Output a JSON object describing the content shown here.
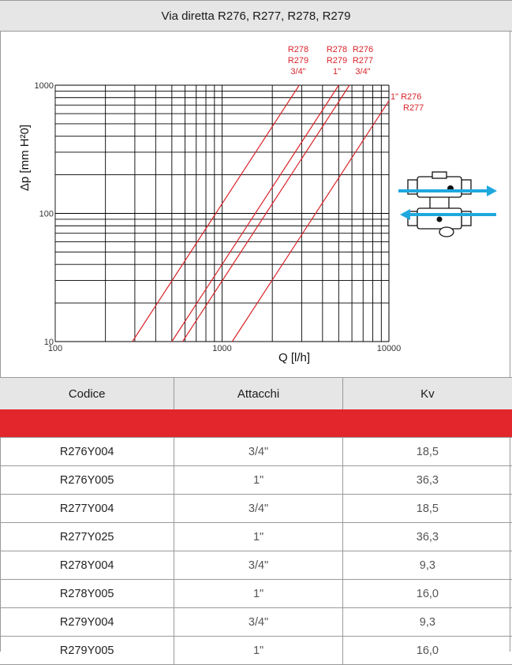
{
  "title": "Via diretta R276, R277, R278, R279",
  "chart_data": {
    "type": "line",
    "xscale": "log",
    "yscale": "log",
    "xlabel": "Q [l/h]",
    "ylabel": "Δp [mm H²0]",
    "xlim": [
      100,
      10000
    ],
    "ylim": [
      10,
      1000
    ],
    "xticks": [
      "100",
      "1000",
      "10000"
    ],
    "yticks": [
      "10",
      "100",
      "1000"
    ],
    "grid": true,
    "line_color": "#d8232a",
    "series": [
      {
        "label_lines": [
          "R278",
          "R279",
          "3/4\""
        ],
        "kv": 9.3,
        "values": [
          [
            290,
            10
          ],
          [
            2900,
            1000
          ]
        ]
      },
      {
        "label_lines": [
          "R278",
          "R279",
          "1\""
        ],
        "kv": 16.0,
        "values": [
          [
            500,
            10
          ],
          [
            5000,
            1000
          ]
        ]
      },
      {
        "label_lines": [
          "R276",
          "R277",
          "3/4\""
        ],
        "kv": 18.5,
        "values": [
          [
            580,
            10
          ],
          [
            5800,
            1000
          ]
        ]
      },
      {
        "label_lines": [
          "1\" R276",
          "R277"
        ],
        "kv": 36.3,
        "values": [
          [
            1150,
            10
          ],
          [
            11500,
            1000
          ]
        ]
      }
    ]
  },
  "diagram": {
    "icon": "valve-diagram-icon",
    "arrow_color": "#1fa8de"
  },
  "table": {
    "headers": [
      "Codice",
      "Attacchi",
      "Kv"
    ],
    "rule_color": "#e3262b",
    "rows": [
      [
        "R276Y004",
        "3/4\"",
        "18,5"
      ],
      [
        "R276Y005",
        "1\"",
        "36,3"
      ],
      [
        "R277Y004",
        "3/4\"",
        "18,5"
      ],
      [
        "R277Y025",
        "1\"",
        "36,3"
      ],
      [
        "R278Y004",
        "3/4\"",
        "9,3"
      ],
      [
        "R278Y005",
        "1\"",
        "16,0"
      ],
      [
        "R279Y004",
        "3/4\"",
        "9,3"
      ],
      [
        "R279Y005",
        "1\"",
        "16,0"
      ]
    ]
  }
}
